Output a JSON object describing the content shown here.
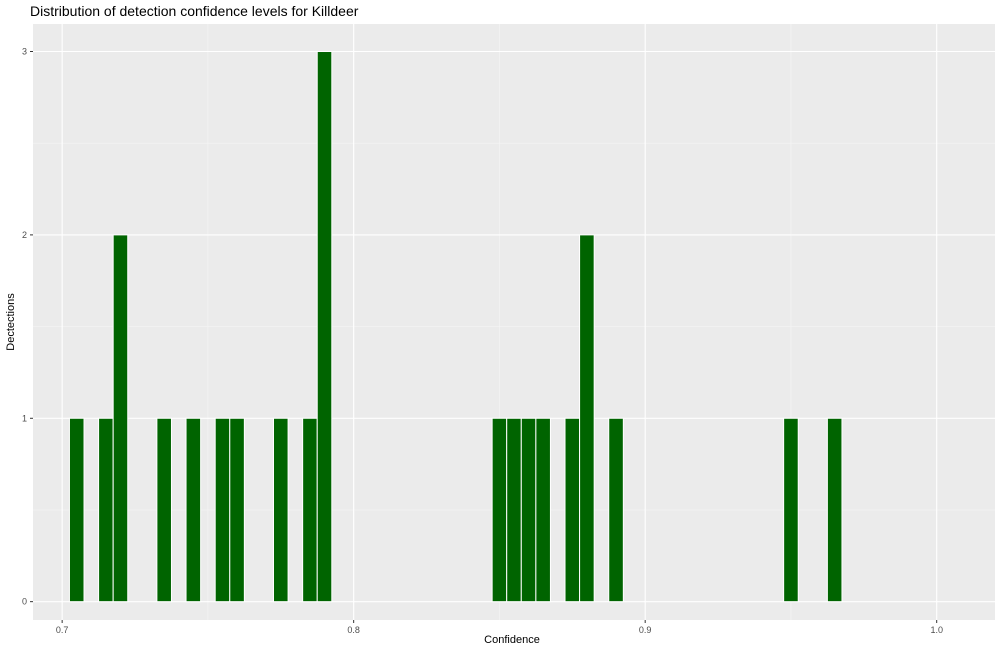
{
  "chart_data": {
    "type": "bar",
    "title": "Distribution of detection confidence levels for Killdeer",
    "xlabel": "Confidence",
    "ylabel": "Dectections",
    "xlim": [
      0.69,
      1.02
    ],
    "ylim": [
      -0.1,
      3.15
    ],
    "x_ticks": [
      0.7,
      0.8,
      0.9,
      1.0
    ],
    "x_tick_labels": [
      "0.7",
      "0.8",
      "0.9",
      "1.0"
    ],
    "y_ticks": [
      0,
      1,
      2,
      3
    ],
    "y_tick_labels": [
      "0",
      "1",
      "2",
      "3"
    ],
    "bin_width": 0.005,
    "bar_color": "#006400",
    "panel_color": "#ebebeb",
    "grid": true,
    "x": [
      0.705,
      0.715,
      0.72,
      0.735,
      0.745,
      0.755,
      0.76,
      0.775,
      0.785,
      0.79,
      0.85,
      0.855,
      0.86,
      0.865,
      0.875,
      0.88,
      0.89,
      0.95,
      0.965
    ],
    "values": [
      1,
      1,
      2,
      1,
      1,
      1,
      1,
      1,
      1,
      3,
      1,
      1,
      1,
      1,
      1,
      2,
      1,
      1,
      1
    ]
  }
}
